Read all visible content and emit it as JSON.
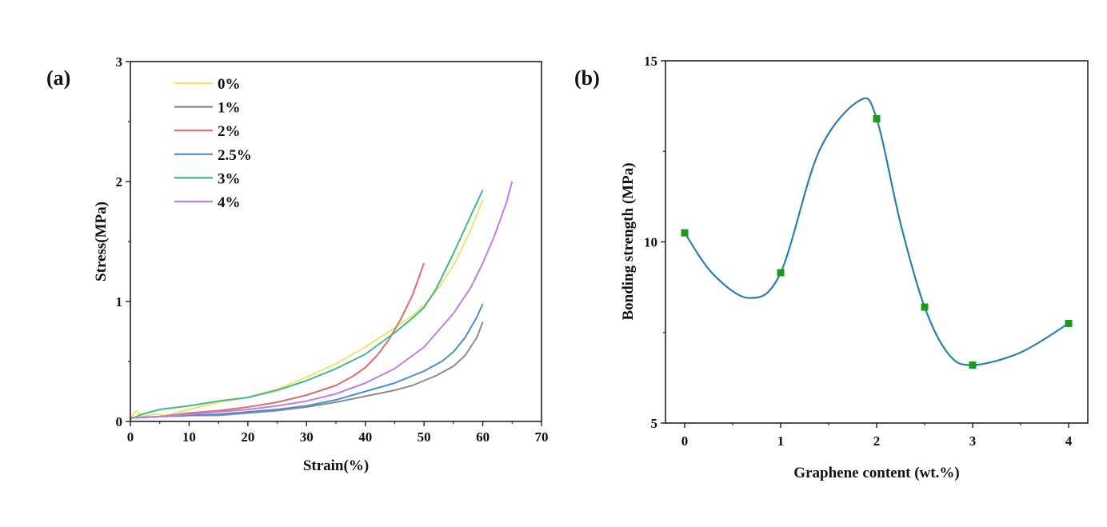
{
  "chart_data": [
    {
      "panel_label": "(a)",
      "type": "line",
      "xlabel": "Strain(%)",
      "ylabel": "Stress(MPa)",
      "xlim": [
        0,
        70
      ],
      "ylim": [
        0,
        3
      ],
      "xticks": [
        "0",
        "10",
        "20",
        "30",
        "40",
        "50",
        "60",
        "70"
      ],
      "yticks": [
        "0",
        "1",
        "2",
        "3"
      ],
      "grid": false,
      "legend_position": "top-left",
      "series": [
        {
          "name": "0%",
          "color": "#f2e36b",
          "x": [
            0,
            1,
            2,
            4,
            6,
            10,
            15,
            20,
            25,
            30,
            35,
            40,
            45,
            48,
            50,
            52,
            55,
            58,
            60
          ],
          "y": [
            0.02,
            0.09,
            0.04,
            0.06,
            0.05,
            0.1,
            0.16,
            0.2,
            0.27,
            0.37,
            0.48,
            0.62,
            0.78,
            0.88,
            0.97,
            1.08,
            1.3,
            1.6,
            1.85
          ]
        },
        {
          "name": "1%",
          "color": "#8c8c8c",
          "x": [
            0,
            5,
            10,
            15,
            20,
            25,
            30,
            35,
            40,
            45,
            48,
            50,
            52,
            55,
            57,
            59,
            60
          ],
          "y": [
            0.03,
            0.04,
            0.05,
            0.05,
            0.07,
            0.09,
            0.12,
            0.16,
            0.21,
            0.26,
            0.3,
            0.34,
            0.38,
            0.46,
            0.55,
            0.7,
            0.83
          ]
        },
        {
          "name": "2%",
          "color": "#e36b6b",
          "x": [
            0,
            5,
            10,
            15,
            20,
            25,
            30,
            35,
            38,
            40,
            42,
            44,
            46,
            48,
            50
          ],
          "y": [
            0.03,
            0.04,
            0.07,
            0.09,
            0.12,
            0.16,
            0.22,
            0.3,
            0.38,
            0.45,
            0.55,
            0.68,
            0.85,
            1.05,
            1.32
          ]
        },
        {
          "name": "2.5%",
          "color": "#4a8fd6",
          "x": [
            0,
            5,
            10,
            15,
            20,
            25,
            30,
            35,
            40,
            45,
            50,
            53,
            55,
            57,
            59,
            60
          ],
          "y": [
            0.03,
            0.04,
            0.05,
            0.06,
            0.08,
            0.1,
            0.13,
            0.18,
            0.25,
            0.32,
            0.42,
            0.5,
            0.58,
            0.7,
            0.87,
            0.98
          ]
        },
        {
          "name": "3%",
          "color": "#3dbb8c",
          "x": [
            0,
            2,
            5,
            10,
            15,
            20,
            25,
            30,
            35,
            40,
            45,
            48,
            50,
            52,
            55,
            58,
            60
          ],
          "y": [
            0.02,
            0.06,
            0.1,
            0.13,
            0.17,
            0.2,
            0.26,
            0.34,
            0.44,
            0.56,
            0.74,
            0.86,
            0.95,
            1.1,
            1.4,
            1.72,
            1.93
          ]
        },
        {
          "name": "4%",
          "color": "#c07ee8",
          "x": [
            0,
            5,
            10,
            15,
            20,
            25,
            30,
            35,
            40,
            45,
            50,
            55,
            58,
            60,
            62,
            64,
            65
          ],
          "y": [
            0.03,
            0.04,
            0.06,
            0.08,
            0.1,
            0.13,
            0.17,
            0.23,
            0.32,
            0.44,
            0.62,
            0.9,
            1.12,
            1.32,
            1.55,
            1.82,
            2.0
          ]
        }
      ]
    },
    {
      "panel_label": "(b)",
      "type": "scatter",
      "xlabel": "Graphene content (wt.%)",
      "ylabel": "Bonding strength (MPa)",
      "xlim": [
        -0.2,
        4.2
      ],
      "ylim": [
        5,
        15
      ],
      "xticks": [
        "0",
        "1",
        "2",
        "3",
        "4"
      ],
      "yticks": [
        "5",
        "10",
        "15"
      ],
      "grid": false,
      "marker_color": "#1a9a1a",
      "curve_color": "#2a7fb0",
      "x": [
        0,
        1,
        2,
        2.5,
        3,
        4
      ],
      "y": [
        10.25,
        9.15,
        13.4,
        8.2,
        6.6,
        7.75
      ],
      "smooth_curve_x": [
        0,
        0.3,
        0.68,
        1.0,
        1.4,
        1.82,
        2.0,
        2.25,
        2.5,
        2.75,
        3.0,
        3.5,
        4.0
      ],
      "smooth_curve_y": [
        10.25,
        9.1,
        8.45,
        9.15,
        12.5,
        13.9,
        13.4,
        10.5,
        8.2,
        6.9,
        6.6,
        6.95,
        7.75
      ]
    }
  ]
}
